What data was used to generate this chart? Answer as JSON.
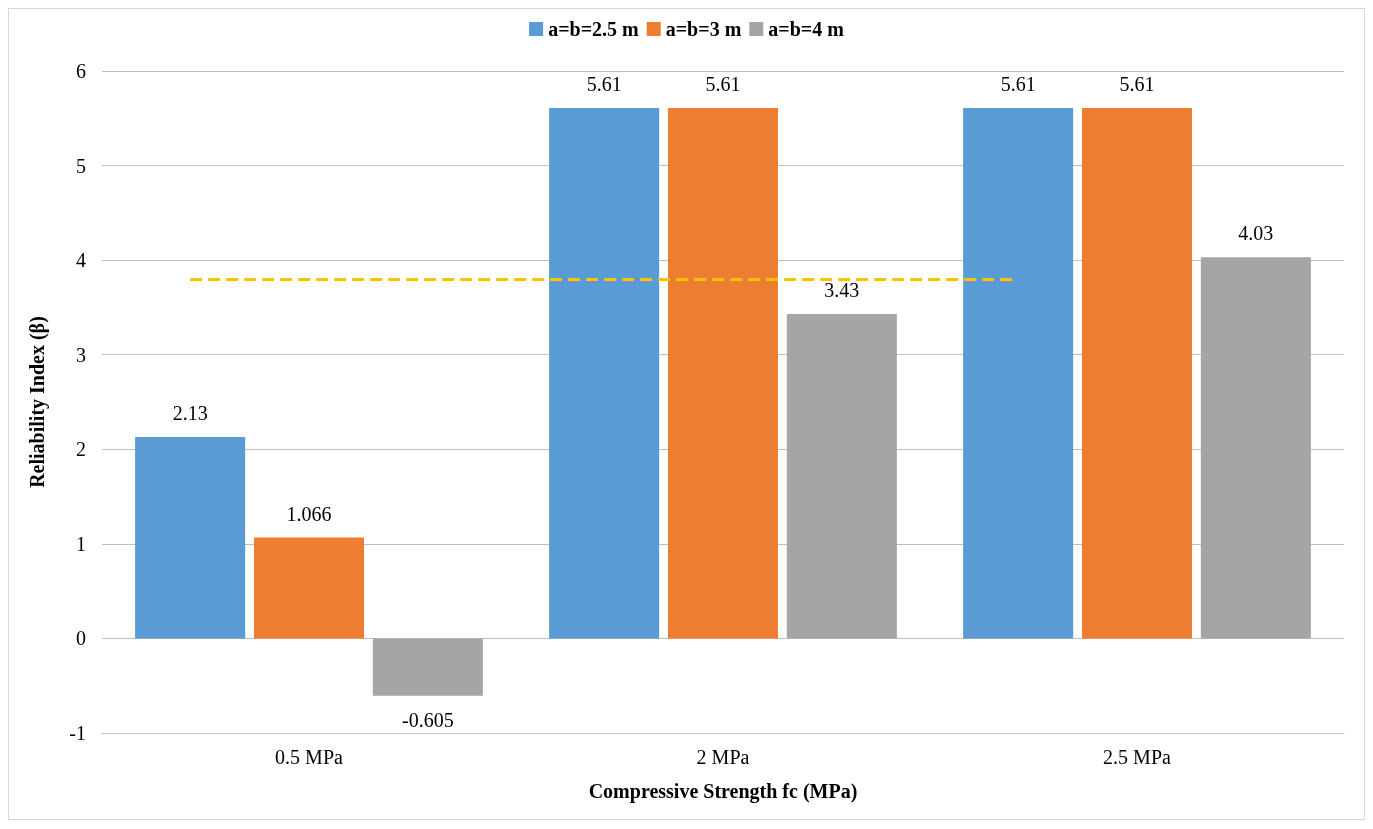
{
  "chart_data": {
    "type": "bar",
    "xlabel": "Compressive Strength fc (MPa)",
    "ylabel": "Reliability Index (β)",
    "categories": [
      "0.5 MPa",
      "2 MPa",
      "2.5 MPa"
    ],
    "series": [
      {
        "name": "a=b=2.5 m",
        "color": "#5b9bd5",
        "values": [
          2.13,
          5.61,
          5.61
        ]
      },
      {
        "name": "a=b=3 m",
        "color": "#ed7d31",
        "values": [
          1.066,
          5.61,
          5.61
        ]
      },
      {
        "name": "a=b=4 m",
        "color": "#a5a5a5",
        "values": [
          -0.605,
          3.43,
          4.03
        ]
      }
    ],
    "ylim": [
      -1,
      6
    ],
    "yticks": [
      -1,
      0,
      1,
      2,
      3,
      4,
      5,
      6
    ],
    "grid": "y",
    "legend": "top",
    "data_labels": true,
    "ref_lines": [
      {
        "axis": "y",
        "value": 3.8,
        "color": "#ffc000",
        "line_style": "dashed"
      }
    ]
  }
}
